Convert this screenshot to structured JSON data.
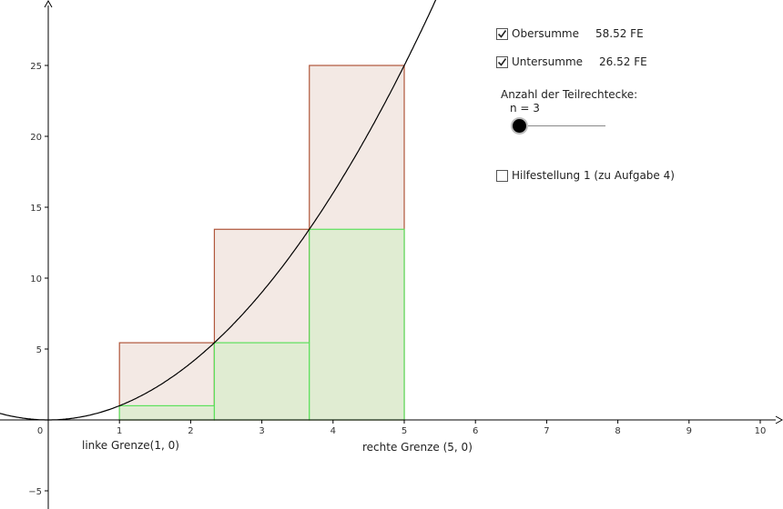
{
  "panel": {
    "obersumme": {
      "label": "Obersumme",
      "value": "58.52 FE",
      "checked": true
    },
    "untersumme": {
      "label": "Untersumme",
      "value": "26.52 FE",
      "checked": true
    },
    "slider": {
      "title": "Anzahl der Teilrechtecke:",
      "value_label": "n = 3",
      "n": 3
    },
    "hilfe": {
      "label": "Hilfestellung 1 (zu Aufgabe 4)",
      "checked": false
    }
  },
  "points": {
    "left": "linke Grenze(1, 0)",
    "right": "rechte Grenze (5, 0)"
  },
  "chart_data": {
    "type": "area",
    "function": "x^2",
    "interval": [
      1,
      5
    ],
    "n": 3,
    "upper_rects": [
      {
        "x0": 1,
        "x1": 2.333,
        "height": 5.444
      },
      {
        "x0": 2.333,
        "x1": 3.667,
        "height": 13.444
      },
      {
        "x0": 3.667,
        "x1": 5,
        "height": 25
      }
    ],
    "lower_rects": [
      {
        "x0": 1,
        "x1": 2.333,
        "height": 1
      },
      {
        "x0": 2.333,
        "x1": 3.667,
        "height": 5.444
      },
      {
        "x0": 3.667,
        "x1": 5,
        "height": 13.444
      }
    ],
    "xlim": [
      -0.7,
      10.3
    ],
    "ylim": [
      -6,
      29.5
    ],
    "x_ticks": [
      "0",
      "1",
      "2",
      "3",
      "4",
      "5",
      "6",
      "7",
      "8",
      "9",
      "10"
    ],
    "y_ticks": [
      "-5",
      "5",
      "10",
      "15",
      "20",
      "25"
    ],
    "colors": {
      "upper_fill": "#f3e9e4",
      "upper_stroke": "#b0563a",
      "lower_fill": "#e0ecd2",
      "lower_stroke": "#5ce05c",
      "curve": "#000000"
    }
  }
}
